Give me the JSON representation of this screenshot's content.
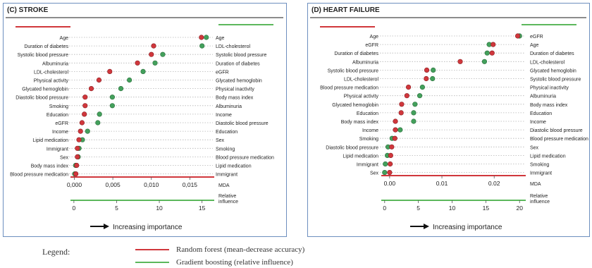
{
  "colors": {
    "rf": "#d0373c",
    "gb": "#43a05c",
    "gb_line": "#5cb85c",
    "frame": "#6d8fbf"
  },
  "legend": {
    "title": "Legend:",
    "rf": "Random forest (mean-decrease accuracy)",
    "gb": "Gradient boosting (relative influence)"
  },
  "chart_data": [
    {
      "type": "scatter",
      "title": "(C) STROKE",
      "arrow_label": "Increasing importance",
      "rf_axis": {
        "label": "MDA",
        "lim": [
          -0.0005,
          0.0178
        ],
        "ticks": [
          0.0,
          0.005,
          0.01,
          0.015
        ],
        "tick_labels": [
          "0,000",
          "0,005",
          "0,010",
          "0,015"
        ]
      },
      "gb_axis": {
        "label": "Relative\ninfluence",
        "lim": [
          -0.4,
          16.1
        ],
        "ticks": [
          0,
          5,
          10,
          15
        ],
        "tick_labels": [
          "0",
          "5",
          "10",
          "15"
        ]
      },
      "rf_series": {
        "name": "Random forest (mean-decrease accuracy)",
        "labels": [
          "Age",
          "Duration of diabetes",
          "Systolic blood pressure",
          "Albuminuria",
          "LDL-cholesterol",
          "Physical activity",
          "Glycated hemoglobin",
          "Diastolic blood pressure",
          "Smoking",
          "Education",
          "eGFR",
          "Income",
          "Lipid medication",
          "Immigrant",
          "Sex",
          "Body mass index",
          "Blood pressure medication"
        ],
        "values": [
          0.0165,
          0.0103,
          0.01,
          0.0082,
          0.0046,
          0.0032,
          0.0022,
          0.0014,
          0.0014,
          0.0013,
          0.001,
          0.0008,
          0.0006,
          0.0004,
          0.0004,
          0.0003,
          0.0002
        ]
      },
      "gb_series": {
        "name": "Gradient boosting (relative influence)",
        "labels": [
          "Age",
          "LDL-cholesterol",
          "Systolic blood pressure",
          "Duration of diabetes",
          "eGFR",
          "Glycated hemoglobin",
          "Physical inactivity",
          "Body mass index",
          "Albuminuria",
          "Income",
          "Diastolic blood pressure",
          "Education",
          "Sex",
          "Smoking",
          "Blood pressure medication",
          "Lipid medication",
          "Immigrant"
        ],
        "values": [
          15.5,
          15.0,
          10.4,
          9.5,
          8.1,
          6.5,
          5.5,
          4.5,
          4.5,
          3.0,
          2.8,
          1.6,
          1.0,
          0.6,
          0.5,
          0.2,
          0.1
        ]
      }
    },
    {
      "type": "scatter",
      "title": "(D) HEART FAILURE",
      "arrow_label": "Increasing importance",
      "rf_axis": {
        "label": "MDA",
        "lim": [
          -0.0016,
          0.0255
        ],
        "ticks": [
          0.0,
          0.01,
          0.02
        ],
        "tick_labels": [
          "0.00",
          "0.01",
          "0.02"
        ]
      },
      "gb_axis": {
        "label": "Relative\ninfluence",
        "lim": [
          -0.5,
          20.5
        ],
        "ticks": [
          0,
          5,
          10,
          15,
          20
        ],
        "tick_labels": [
          "0",
          "5",
          "10",
          "15",
          "20"
        ]
      },
      "rf_series": {
        "name": "Random forest (mean-decrease accuracy)",
        "labels": [
          "Age",
          "eGFR",
          "Duration of diabetes",
          "Albuminuria",
          "Systolic blood pressure",
          "LDL-cholesterol",
          "Blood pressure medication",
          "Physical activity",
          "Glycated hemoglobin",
          "Education",
          "Body mass index",
          "Income",
          "Smoking",
          "Diastolic blood pressure",
          "Lipid medication",
          "Immigrant",
          "Sex"
        ],
        "values": [
          0.0245,
          0.0198,
          0.0196,
          0.0135,
          0.0071,
          0.007,
          0.0036,
          0.0033,
          0.0023,
          0.0022,
          0.0011,
          0.0011,
          0.001,
          0.0004,
          0.0002,
          0.0001,
          0.0
        ]
      },
      "gb_series": {
        "name": "Gradient boosting (relative influence)",
        "labels": [
          "eGFR",
          "Age",
          "Duration of diabetes",
          "LDL-cholesterol",
          "Glycated hemoglobin",
          "Systolic blood pressure",
          "Physical inactivity",
          "Albuminuria",
          "Body mass index",
          "Education",
          "Income",
          "Diastolic blood pressure",
          "Blood pressure medication",
          "Sex",
          "Lipid medication",
          "Smoking",
          "Immigrant"
        ],
        "values": [
          20.0,
          15.5,
          15.2,
          14.8,
          7.2,
          7.1,
          5.6,
          5.2,
          4.5,
          4.3,
          4.3,
          2.3,
          1.1,
          0.5,
          0.4,
          0.1,
          0.0
        ]
      }
    }
  ]
}
